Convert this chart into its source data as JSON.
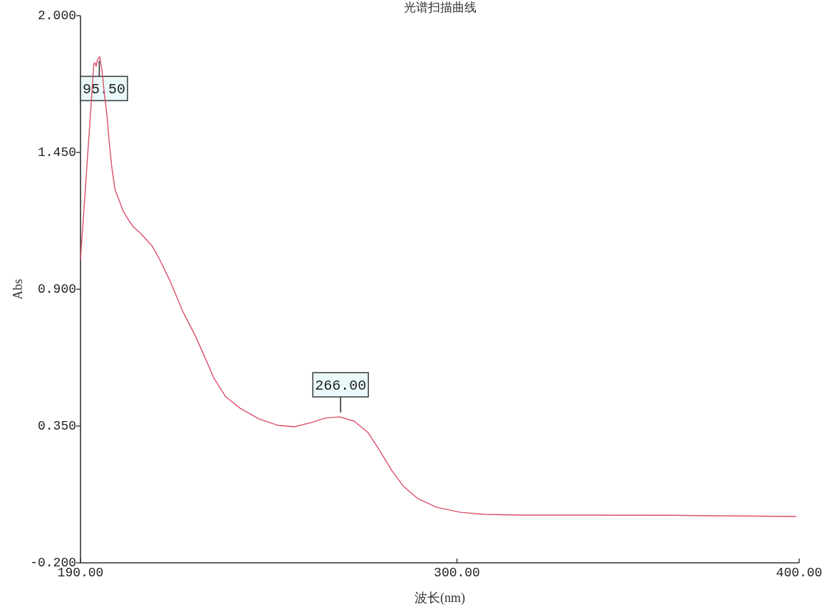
{
  "chart_data": {
    "type": "line",
    "title": "光谱扫描曲线",
    "xlabel": "波长(nm)",
    "ylabel": "Abs",
    "xlim": [
      190,
      400
    ],
    "ylim": [
      -0.2,
      2.0
    ],
    "xticks": [
      {
        "value": 190,
        "label": "190.00"
      },
      {
        "value": 300,
        "label": "300.00"
      },
      {
        "value": 400,
        "label": "400.00"
      }
    ],
    "yticks": [
      {
        "value": -0.2,
        "label": "-0.200"
      },
      {
        "value": 0.35,
        "label": "0.350"
      },
      {
        "value": 0.9,
        "label": "0.900"
      },
      {
        "value": 1.45,
        "label": "1.450"
      },
      {
        "value": 2.0,
        "label": "2.000"
      }
    ],
    "annotations": [
      {
        "text": "95.50",
        "x": 195.5,
        "y": 1.836
      },
      {
        "text": "266.00",
        "x": 266,
        "y": 0.387
      }
    ],
    "series": [
      {
        "color": "#d9506a",
        "x": [
          190.0,
          192.0,
          193.9,
          194.2,
          194.6,
          194.9,
          195.6,
          196.3,
          197.0,
          197.7,
          198.4,
          199.1,
          200.1,
          201.2,
          202.5,
          204.6,
          205.7,
          207.4,
          210.9,
          213.0,
          216.4,
          219.9,
          223.4,
          226.2,
          228.9,
          232.4,
          236.6,
          242.1,
          247.6,
          252.5,
          257.4,
          261.5,
          265.7,
          269.9,
          274.0,
          277.5,
          280.9,
          284.4,
          288.6,
          294.1,
          301.1,
          308.0,
          318.4,
          336.9,
          361.0,
          377.0,
          399.0
        ],
        "values": [
          1.02,
          1.42,
          1.806,
          1.811,
          1.796,
          1.82,
          1.836,
          1.777,
          1.683,
          1.605,
          1.491,
          1.396,
          1.299,
          1.261,
          1.213,
          1.167,
          1.147,
          1.127,
          1.075,
          1.023,
          0.926,
          0.811,
          0.717,
          0.631,
          0.545,
          0.468,
          0.422,
          0.379,
          0.353,
          0.347,
          0.364,
          0.382,
          0.387,
          0.37,
          0.324,
          0.25,
          0.172,
          0.107,
          0.058,
          0.023,
          0.003,
          -0.005,
          -0.008,
          -0.008,
          -0.009,
          -0.011,
          -0.014
        ]
      }
    ]
  }
}
